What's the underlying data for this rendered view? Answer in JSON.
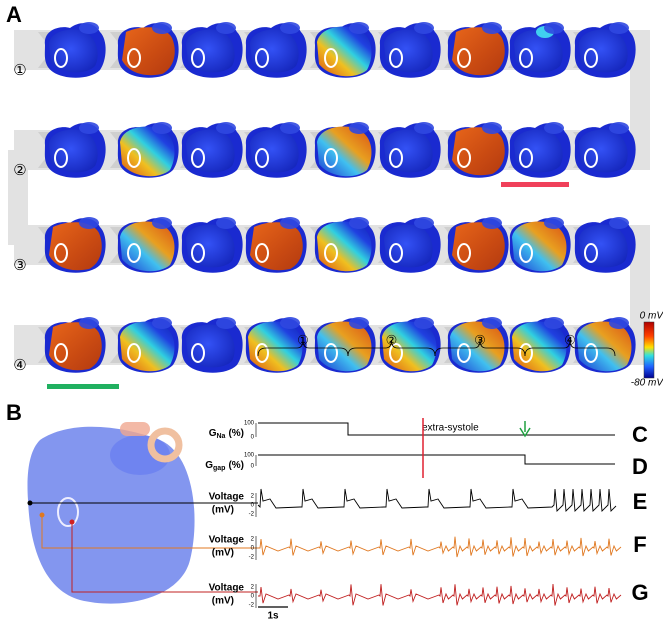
{
  "panel_a": {
    "label": "A",
    "rows": [
      "①",
      "②",
      "③",
      "④"
    ],
    "colorbar": {
      "max": "0 mV",
      "min": "-80 mV"
    }
  },
  "panel_b": {
    "label": "B"
  },
  "braces": [
    "①",
    "②",
    "③",
    "④"
  ],
  "gna": {
    "letter": "G",
    "sub": "Na",
    "unit": "(%)",
    "ticks": [
      "100",
      "0"
    ],
    "panel": "C"
  },
  "ggap": {
    "letter": "G",
    "sub": "gap",
    "unit": "(%)",
    "ticks": [
      "100",
      "0"
    ],
    "panel": "D"
  },
  "annotation": "extra-systole",
  "voltage": [
    {
      "title": "Voltage",
      "unit": "(mV)",
      "ticks": [
        "2",
        "0",
        "-2"
      ],
      "panel": "E"
    },
    {
      "title": "Voltage",
      "unit": "(mV)",
      "ticks": [
        "2",
        "0",
        "-2"
      ],
      "panel": "F"
    },
    {
      "title": "Voltage",
      "unit": "(mV)",
      "ticks": [
        "2",
        "0",
        "-2"
      ],
      "panel": "G"
    }
  ],
  "scale_bar": "1s"
}
